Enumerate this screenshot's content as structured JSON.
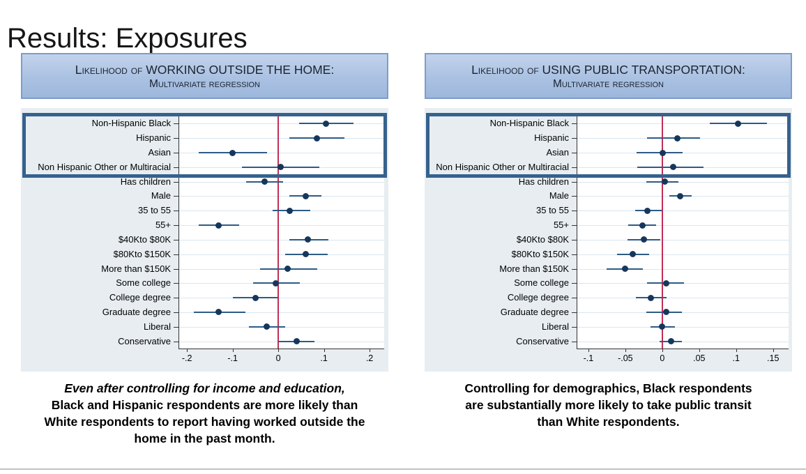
{
  "title": "Results: Exposures",
  "panels": [
    {
      "header_line1": "Likelihood of WORKING OUTSIDE THE HOME:",
      "header_line2": "Multivariate regression",
      "caption_line1_italic": "Even after controlling for income and education,",
      "caption_rest": "Black and Hispanic respondents are more likely than White respondents to report having worked outside the home in the past month."
    },
    {
      "header_line1": "Likelihood of USING PUBLIC TRANSPORTATION:",
      "header_line2": "Multivariate regression",
      "caption_line1_italic": "",
      "caption_rest": "Controlling for demographics, Black respondents are substantially more likely to take public transit than White respondents."
    }
  ],
  "colors": {
    "dot": "#16375c",
    "ci": "#2c5b85",
    "zero_line": "#c22e54",
    "highlight_box": "#35618e",
    "gridline": "#d9e6f0",
    "plot_bg": "#ffffff",
    "panel_bg": "#e7edf1",
    "axis": "#333333",
    "header_fill_top": "#c2d3eb",
    "header_fill_bottom": "#9db7dc",
    "header_border": "#7e9cc9"
  },
  "chart_data": [
    {
      "type": "scatter",
      "variant": "coefficient-plot-dot-with-ci",
      "title": "Likelihood of WORKING OUTSIDE THE HOME: Multivariate regression",
      "xlabel": "",
      "ylabel": "",
      "grid": true,
      "legend": "none",
      "categories": [
        "Non-Hispanic Black",
        "Hispanic",
        "Asian",
        "Non Hispanic Other or Multiracial",
        "Has children",
        "Male",
        "35 to 55",
        "55+",
        "$40Kto $80K",
        "$80Kto $150K",
        "More than $150K",
        "Some college",
        "College degree",
        "Graduate degree",
        "Liberal",
        "Conservative"
      ],
      "estimates": [
        0.105,
        0.085,
        -0.1,
        0.005,
        -0.03,
        0.06,
        0.025,
        -0.13,
        0.065,
        0.06,
        0.02,
        -0.005,
        -0.05,
        -0.13,
        -0.025,
        0.04
      ],
      "ci_low": [
        0.045,
        0.025,
        -0.175,
        -0.08,
        -0.07,
        0.025,
        -0.012,
        -0.175,
        0.025,
        0.015,
        -0.04,
        -0.055,
        -0.1,
        -0.185,
        -0.065,
        0.0
      ],
      "ci_high": [
        0.165,
        0.145,
        -0.025,
        0.09,
        0.01,
        0.095,
        0.07,
        -0.085,
        0.11,
        0.108,
        0.085,
        0.047,
        0.0,
        -0.072,
        0.015,
        0.08
      ],
      "zero_line": 0,
      "xlim": [
        -0.217,
        0.232
      ],
      "x_ticks": [
        -0.2,
        -0.1,
        0,
        0.1,
        0.2
      ],
      "x_tick_labels": [
        "-.2",
        "-.1",
        "0",
        ".1",
        ".2"
      ],
      "highlight_rows": [
        0,
        3
      ]
    },
    {
      "type": "scatter",
      "variant": "coefficient-plot-dot-with-ci",
      "title": "Likelihood of USING PUBLIC TRANSPORTATION: Multivariate regression",
      "xlabel": "",
      "ylabel": "",
      "grid": true,
      "legend": "none",
      "categories": [
        "Non-Hispanic Black",
        "Hispanic",
        "Asian",
        "Non Hispanic Other or Multiracial",
        "Has children",
        "Male",
        "35 to 55",
        "55+",
        "$40Kto $80K",
        "$80Kto $150K",
        "More than $150K",
        "Some college",
        "College degree",
        "Graduate degree",
        "Liberal",
        "Conservative"
      ],
      "estimates": [
        0.103,
        0.02,
        0.001,
        0.015,
        0.003,
        0.024,
        -0.02,
        -0.027,
        -0.025,
        -0.04,
        -0.05,
        0.005,
        -0.015,
        0.005,
        0.0,
        0.012
      ],
      "ci_low": [
        0.064,
        -0.021,
        -0.035,
        -0.034,
        -0.022,
        0.01,
        -0.037,
        -0.046,
        -0.047,
        -0.061,
        -0.075,
        -0.021,
        -0.036,
        -0.022,
        -0.016,
        -0.004
      ],
      "ci_high": [
        0.142,
        0.051,
        0.028,
        0.056,
        0.022,
        0.04,
        -0.001,
        -0.008,
        -0.003,
        -0.018,
        -0.026,
        0.029,
        0.006,
        0.027,
        0.017,
        0.027
      ],
      "zero_line": 0,
      "xlim": [
        -0.115,
        0.171
      ],
      "x_ticks": [
        -0.1,
        -0.05,
        0,
        0.05,
        0.1,
        0.15
      ],
      "x_tick_labels": [
        "-.1",
        "-.05",
        "0",
        ".05",
        ".1",
        ".15"
      ],
      "highlight_rows": [
        0,
        3
      ]
    }
  ]
}
